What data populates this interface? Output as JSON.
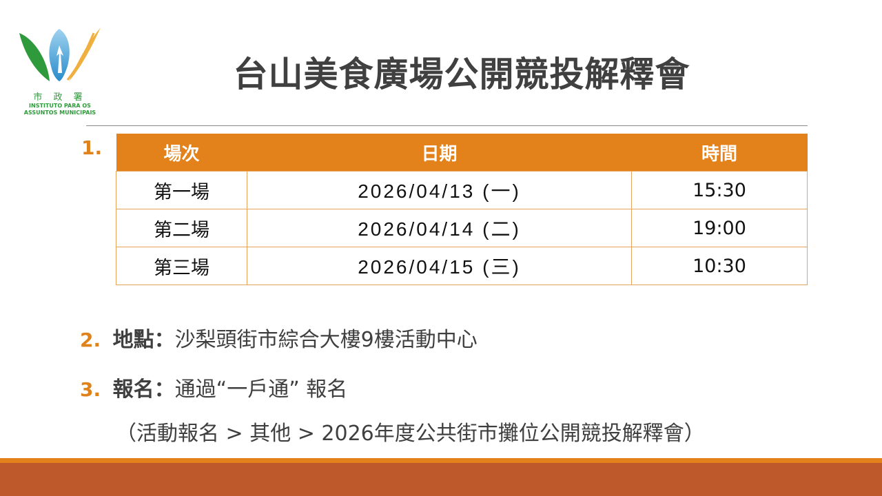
{
  "logo": {
    "chinese": "市 政 署",
    "line1": "INSTITUTO PARA OS",
    "line2": "ASSUNTOS MUNICIPAIS"
  },
  "title": "台山美食廣場公開競投解釋會",
  "sections": [
    {
      "num": "1."
    },
    {
      "num": "2.",
      "label": "地點：",
      "text": "沙梨頭街市綜合大樓9樓活動中心"
    },
    {
      "num": "3.",
      "label": "報名：",
      "text": "通過“一戶通” 報名",
      "note": "（活動報名 > 其他 > 2026年度公共街市攤位公開競投解釋會）"
    }
  ],
  "table": {
    "headers": [
      "場次",
      "日期",
      "時間"
    ],
    "rows": [
      [
        "第一場",
        "2026/04/13 (一)",
        "15:30"
      ],
      [
        "第二場",
        "2026/04/14 (二)",
        "19:00"
      ],
      [
        "第三場",
        "2026/04/15 (三)",
        "10:30"
      ]
    ]
  },
  "colors": {
    "accent": "#e3821a",
    "footer": "#bd592b",
    "text": "#404040"
  }
}
